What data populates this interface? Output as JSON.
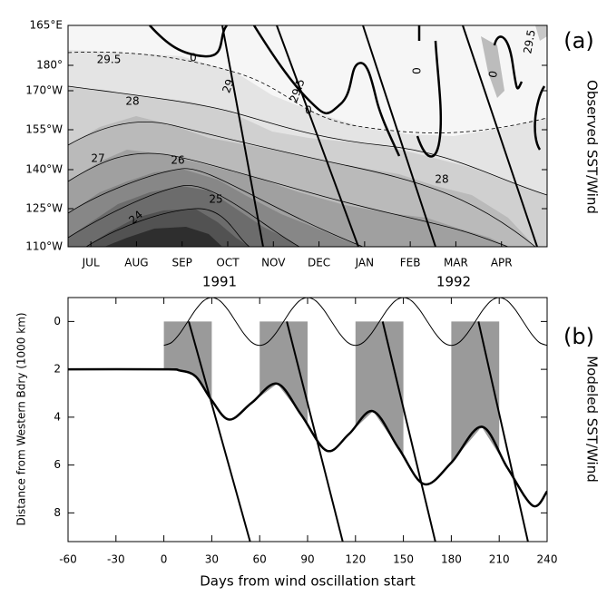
{
  "chart_data": [
    {
      "type": "contour",
      "panel_label": "(a)",
      "side_title": "Observed SST/Wind",
      "categories": [
        "JUL",
        "AUG",
        "SEP",
        "OCT",
        "NOV",
        "DEC",
        "JAN",
        "FEB",
        "MAR",
        "APR"
      ],
      "year_labels": [
        "1991",
        "1992"
      ],
      "y_categories": [
        "165°E",
        "180°",
        "170°W",
        "155°W",
        "140°W",
        "125°W",
        "110°W"
      ],
      "contour_labels": [
        "29.5",
        "0",
        "29",
        "29.5",
        "0",
        "28",
        "27",
        "26",
        "25",
        "24",
        "28",
        "0",
        "0",
        "29.5"
      ]
    },
    {
      "type": "line",
      "panel_label": "(b)",
      "side_title": "Modeled SST/Wind",
      "xlabel": "Days from wind oscillation start",
      "ylabel": "Distance from Western Bdry (1000 km)",
      "xlim": [
        -60,
        240
      ],
      "xticks": [
        -60,
        -30,
        0,
        30,
        60,
        90,
        120,
        150,
        180,
        210,
        240
      ],
      "ylim": [
        -1,
        9.2
      ],
      "y_inverted": true,
      "yticks": [
        0,
        2,
        4,
        6,
        8
      ],
      "bands": [
        [
          0,
          30
        ],
        [
          60,
          90
        ],
        [
          120,
          150
        ],
        [
          180,
          210
        ]
      ],
      "band_color": "#9a9a9a",
      "series": [
        {
          "color": "#000000",
          "width": 1,
          "smooth": true,
          "x": [
            0,
            5,
            10,
            15,
            20,
            25,
            30,
            35,
            40,
            45,
            50,
            55,
            60,
            65,
            70,
            75,
            80,
            85,
            90,
            95,
            100,
            105,
            110,
            115,
            120,
            125,
            130,
            135,
            140,
            145,
            150,
            155,
            160,
            165,
            170,
            175,
            180,
            185,
            190,
            195,
            200,
            205,
            210,
            215,
            220,
            225,
            230,
            235,
            240
          ],
          "values": [
            1,
            0.87,
            0.5,
            0,
            -0.5,
            -0.87,
            -1,
            -0.87,
            -0.5,
            0,
            0.5,
            0.87,
            1,
            0.87,
            0.5,
            0,
            -0.5,
            -0.87,
            -1,
            -0.87,
            -0.5,
            0,
            0.5,
            0.87,
            1,
            0.87,
            0.5,
            0,
            -0.5,
            -0.87,
            -1,
            -0.87,
            -0.5,
            0,
            0.5,
            0.87,
            1,
            0.87,
            0.5,
            0,
            -0.5,
            -0.87,
            -1,
            -0.87,
            -0.5,
            0,
            0.5,
            0.87,
            1
          ]
        },
        {
          "color": "#000000",
          "width": 2.5,
          "smooth": true,
          "band_floor": true,
          "x": [
            -60,
            0,
            10,
            20,
            30,
            41,
            55,
            71,
            86,
            102,
            116,
            131,
            147,
            163,
            180,
            199,
            215,
            231,
            240
          ],
          "values": [
            2,
            2,
            2.05,
            2.3,
            3.3,
            4.1,
            3.4,
            2.6,
            3.9,
            5.4,
            4.7,
            3.75,
            5.3,
            6.8,
            5.9,
            4.4,
            6.1,
            7.7,
            7.1
          ]
        },
        {
          "color": "#000000",
          "width": 2,
          "x": [
            15.6,
            54
          ],
          "values": [
            0,
            9.2
          ]
        },
        {
          "color": "#000000",
          "width": 2,
          "x": [
            77,
            112
          ],
          "values": [
            0,
            9.2
          ]
        },
        {
          "color": "#000000",
          "width": 2,
          "x": [
            137,
            170
          ],
          "values": [
            0,
            9.2
          ]
        },
        {
          "color": "#000000",
          "width": 2,
          "x": [
            197,
            228
          ],
          "values": [
            0,
            9.2
          ]
        }
      ]
    }
  ]
}
